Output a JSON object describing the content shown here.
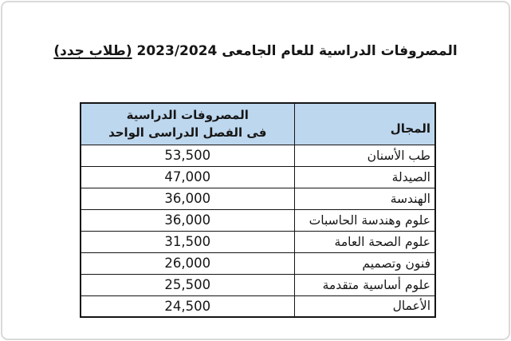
{
  "title": {
    "main": "المصروفات الدراسية للعام الجامعى 2023/2024",
    "highlight": "(طلاب جدد)"
  },
  "table": {
    "headers": {
      "field": "المجال",
      "fee_line1": "المصروفات الدراسية",
      "fee_line2": "فى الفصل الدراسى الواحد"
    },
    "rows": [
      {
        "field": "طب الأسنان",
        "fee": "53,500"
      },
      {
        "field": "الصيدلة",
        "fee": "47,000"
      },
      {
        "field": "الهندسة",
        "fee": "36,000"
      },
      {
        "field": "علوم وهندسة الحاسبات",
        "fee": "36,000"
      },
      {
        "field": "علوم الصحة العامة",
        "fee": "31,500"
      },
      {
        "field": "فنون وتصميم",
        "fee": "26,000"
      },
      {
        "field": "علوم أساسية متقدمة",
        "fee": "25,500"
      },
      {
        "field": "الأعمال",
        "fee": "24,500"
      }
    ]
  },
  "colors": {
    "header_bg": "#BDD7EE",
    "table_border": "#141414",
    "card_border": "#D9D9D9",
    "text": "#161616"
  }
}
